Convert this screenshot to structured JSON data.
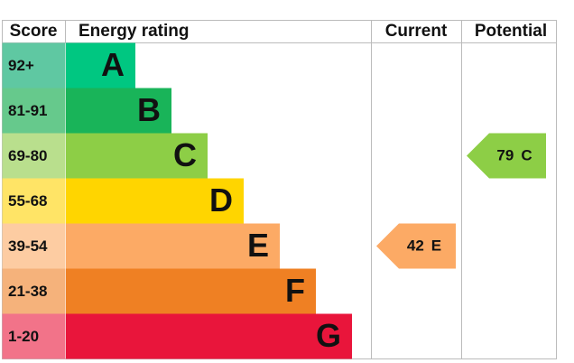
{
  "chart_data": {
    "type": "epc",
    "headers": {
      "score": "Score",
      "rating": "Energy rating",
      "current": "Current",
      "potential": "Potential"
    },
    "bands": [
      {
        "score": "92+",
        "letter": "A",
        "color": "#00c781",
        "score_color": "#5fc8a2"
      },
      {
        "score": "81-91",
        "letter": "B",
        "color": "#19b459",
        "score_color": "#66c98c"
      },
      {
        "score": "69-80",
        "letter": "C",
        "color": "#8dce46",
        "score_color": "#b9df8d"
      },
      {
        "score": "55-68",
        "letter": "D",
        "color": "#ffd500",
        "score_color": "#ffe466"
      },
      {
        "score": "39-54",
        "letter": "E",
        "color": "#fcaa65",
        "score_color": "#fdcca2"
      },
      {
        "score": "21-38",
        "letter": "F",
        "color": "#ef8023",
        "score_color": "#f5b27b"
      },
      {
        "score": "1-20",
        "letter": "G",
        "color": "#e9153b",
        "score_color": "#f27389"
      }
    ],
    "current": {
      "value": 42,
      "band": "E"
    },
    "potential": {
      "value": 79,
      "band": "C"
    }
  }
}
